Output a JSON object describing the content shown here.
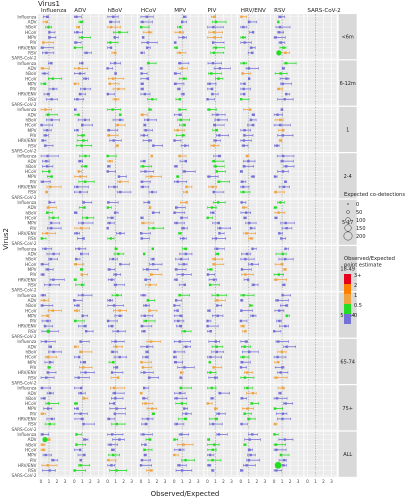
{
  "chart_data": {
    "type": "scatter",
    "facet_col_title": "Virus1",
    "facet_row_title": "Virus2",
    "xlabel": "Observed/Expected",
    "x_ticks": [
      "0",
      "1",
      "2",
      "3"
    ],
    "viruses": [
      "Influenza",
      "ADV",
      "hBoV",
      "HCoV",
      "MPV",
      "PIV",
      "HRV/ENV",
      "RSV",
      "SARS-CoV-2"
    ],
    "age_groups": [
      "<6m",
      "6-12m",
      "1",
      "2-4",
      "5-17",
      "18-49",
      "50-64",
      "65-74",
      "75+",
      "ALL"
    ],
    "legend_size": {
      "title": "Expected co-detections",
      "items": [
        "0",
        "50",
        "100",
        "150",
        "200"
      ]
    },
    "legend_color": {
      "title": "Observed/Expected\npoint estimate",
      "items": [
        {
          "label": "3+",
          "color": "#e5001b"
        },
        {
          "label": "2",
          "color": "#ff7f00"
        },
        {
          "label": "1",
          "color": "#f1a340"
        },
        {
          "label": "0.5",
          "color": "#22dd22"
        },
        {
          "label": "0",
          "color": "#7570d8"
        }
      ]
    },
    "colors": {
      "blue": "#7570d8",
      "green": "#22dd22",
      "orange": "#f1a340",
      "red": "#e5001b",
      "strip": "#d9d9d9"
    },
    "points": [
      {
        "age": "<6m",
        "v1": "RSV",
        "v2": "RSV",
        "x": 0.6,
        "size": 2
      },
      {
        "age": "ALL",
        "v1": "Influenza",
        "v2": "ADV",
        "x": 0.5,
        "size": 2
      },
      {
        "age": "ALL",
        "v1": "RSV",
        "v2": "HRV/ENV",
        "x": 0.5,
        "size": 3
      },
      {
        "age": "50-64",
        "v1": "Influenza",
        "v2": "RSV",
        "x": 0.9,
        "size": 1
      }
    ]
  }
}
